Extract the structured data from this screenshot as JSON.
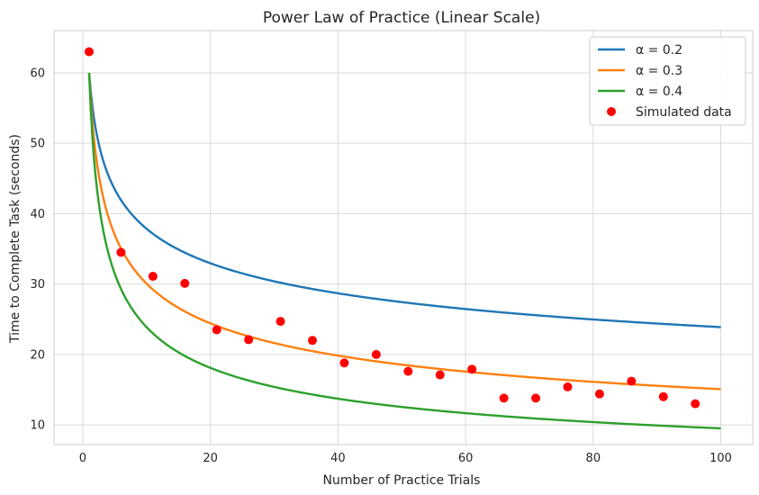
{
  "chart_data": {
    "type": "line",
    "title": "Power Law of Practice (Linear Scale)",
    "xlabel": "Number of Practice Trials",
    "ylabel": "Time to Complete Task (seconds)",
    "xlim": [
      -4.5,
      105
    ],
    "ylim": [
      7.2,
      66
    ],
    "xticks": [
      0,
      20,
      40,
      60,
      80,
      100
    ],
    "yticks": [
      10,
      20,
      30,
      40,
      50,
      60
    ],
    "grid": true,
    "legend_position": "top-right",
    "model": {
      "a": 60,
      "x_start": 1,
      "x_end": 100
    },
    "series": [
      {
        "name": "α = 0.2",
        "alpha": 0.2,
        "color": "#1f77b4"
      },
      {
        "name": "α = 0.3",
        "alpha": 0.3,
        "color": "#ff7f0e"
      },
      {
        "name": "α = 0.4",
        "alpha": 0.4,
        "color": "#2ca02c"
      }
    ],
    "scatter": {
      "name": "Simulated data",
      "color": "#ff0000",
      "x": [
        1,
        6,
        11,
        16,
        21,
        26,
        31,
        36,
        41,
        46,
        51,
        56,
        61,
        66,
        71,
        76,
        81,
        86,
        91,
        96
      ],
      "y": [
        63.0,
        34.5,
        31.1,
        30.1,
        23.5,
        22.1,
        24.7,
        22.0,
        18.8,
        20.0,
        17.6,
        17.1,
        17.9,
        13.8,
        13.8,
        15.4,
        14.4,
        16.2,
        14.0,
        13.0
      ]
    }
  }
}
